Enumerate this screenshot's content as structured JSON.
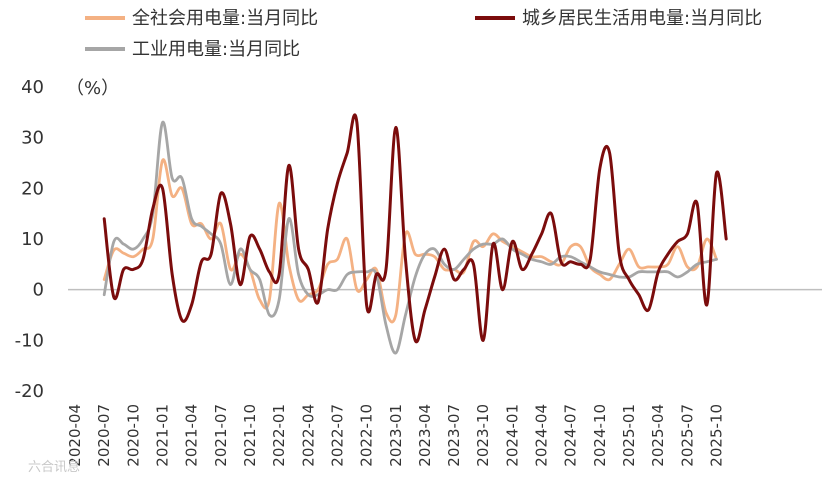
{
  "chart_data": {
    "type": "line",
    "title": "",
    "xlabel": "",
    "ylabel": "",
    "unit_label": "（%）",
    "ylim": [
      -20,
      40
    ],
    "yticks": [
      40,
      30,
      20,
      10,
      0,
      -10,
      -20
    ],
    "x_tick_labels": [
      "2020-04",
      "2020-07",
      "2020-10",
      "2021-01",
      "2021-04",
      "2021-07",
      "2021-10",
      "2022-01",
      "2022-04",
      "2022-07",
      "2022-10",
      "2023-01",
      "2023-04",
      "2023-07",
      "2023-10",
      "2024-01",
      "2024-04",
      "2024-07",
      "2024-10",
      "2025-01",
      "2025-04",
      "2025-07",
      "2025-10"
    ],
    "x_start": "2020-04",
    "x_end": "2025-10",
    "legend_position": "top",
    "series": [
      {
        "name": "全社会用电量:当月同比",
        "color": "#f4b183",
        "points": [
          [
            3,
            2
          ],
          [
            4,
            7.8
          ],
          [
            5,
            7.2
          ],
          [
            6,
            6.5
          ],
          [
            7,
            8
          ],
          [
            8,
            10
          ],
          [
            9,
            25.5
          ],
          [
            10,
            18.5
          ],
          [
            11,
            20
          ],
          [
            12,
            13
          ],
          [
            13,
            13
          ],
          [
            14,
            10
          ],
          [
            15,
            13
          ],
          [
            16,
            4
          ],
          [
            17,
            7
          ],
          [
            18,
            4
          ],
          [
            19,
            -2
          ],
          [
            20,
            -2
          ],
          [
            21,
            17
          ],
          [
            22,
            5
          ],
          [
            23,
            -2
          ],
          [
            24,
            -1
          ],
          [
            25,
            0
          ],
          [
            26,
            5
          ],
          [
            27,
            6
          ],
          [
            28,
            10
          ],
          [
            29,
            0
          ],
          [
            30,
            2
          ],
          [
            31,
            4
          ],
          [
            32,
            -4.5
          ],
          [
            33,
            -5
          ],
          [
            34,
            11
          ],
          [
            35,
            7
          ],
          [
            36,
            7
          ],
          [
            37,
            6.5
          ],
          [
            38,
            4
          ],
          [
            39,
            4
          ],
          [
            40,
            3.5
          ],
          [
            41,
            9.5
          ],
          [
            42,
            8.5
          ],
          [
            43,
            11
          ],
          [
            44,
            9.5
          ],
          [
            45,
            8.5
          ],
          [
            46,
            7.5
          ],
          [
            47,
            6.5
          ],
          [
            48,
            6.5
          ],
          [
            49,
            5.5
          ],
          [
            50,
            5
          ],
          [
            51,
            8.5
          ],
          [
            52,
            8.5
          ],
          [
            53,
            4.5
          ],
          [
            54,
            3
          ],
          [
            55,
            2
          ],
          [
            56,
            5
          ],
          [
            57,
            8
          ],
          [
            58,
            4.5
          ],
          [
            59,
            4.5
          ],
          [
            60,
            4.5
          ],
          [
            61,
            5
          ],
          [
            62,
            8.5
          ],
          [
            63,
            4.5
          ],
          [
            64,
            4.5
          ],
          [
            65,
            10
          ],
          [
            66,
            6
          ]
        ]
      },
      {
        "name": "城乡居民生活用电量:当月同比",
        "color": "#7b0c0c",
        "points": [
          [
            3,
            14
          ],
          [
            4,
            -1.5
          ],
          [
            5,
            4
          ],
          [
            6,
            4
          ],
          [
            7,
            6
          ],
          [
            8,
            16
          ],
          [
            9,
            20
          ],
          [
            10,
            3
          ],
          [
            11,
            -6
          ],
          [
            12,
            -3
          ],
          [
            13,
            5.5
          ],
          [
            14,
            7
          ],
          [
            15,
            19
          ],
          [
            16,
            13
          ],
          [
            17,
            1
          ],
          [
            18,
            10.5
          ],
          [
            19,
            8
          ],
          [
            20,
            3.5
          ],
          [
            21,
            3
          ],
          [
            22,
            24.5
          ],
          [
            23,
            8
          ],
          [
            24,
            4
          ],
          [
            25,
            -2.5
          ],
          [
            26,
            12
          ],
          [
            27,
            21
          ],
          [
            28,
            27
          ],
          [
            29,
            33
          ],
          [
            30,
            -3
          ],
          [
            31,
            3
          ],
          [
            32,
            4
          ],
          [
            33,
            32
          ],
          [
            34,
            6
          ],
          [
            35,
            -10
          ],
          [
            36,
            -4
          ],
          [
            37,
            2.5
          ],
          [
            38,
            8
          ],
          [
            39,
            2
          ],
          [
            40,
            4
          ],
          [
            41,
            5
          ],
          [
            42,
            -10
          ],
          [
            43,
            9
          ],
          [
            44,
            0
          ],
          [
            45,
            9.5
          ],
          [
            46,
            4
          ],
          [
            47,
            7
          ],
          [
            48,
            11
          ],
          [
            49,
            15
          ],
          [
            50,
            5.5
          ],
          [
            51,
            5.5
          ],
          [
            52,
            5
          ],
          [
            53,
            6
          ],
          [
            54,
            24
          ],
          [
            55,
            27
          ],
          [
            56,
            7
          ],
          [
            57,
            2
          ],
          [
            58,
            -1
          ],
          [
            59,
            -4
          ],
          [
            60,
            3.5
          ],
          [
            61,
            7
          ],
          [
            62,
            9.5
          ],
          [
            63,
            11
          ],
          [
            64,
            17
          ],
          [
            65,
            -3
          ],
          [
            66,
            23
          ],
          [
            67,
            10
          ]
        ]
      },
      {
        "name": "工业用电量:当月同比",
        "color": "#a6a6a6",
        "points": [
          [
            3,
            -1
          ],
          [
            4,
            9.5
          ],
          [
            5,
            9
          ],
          [
            6,
            8
          ],
          [
            7,
            10
          ],
          [
            8,
            15
          ],
          [
            9,
            33
          ],
          [
            10,
            22
          ],
          [
            11,
            22
          ],
          [
            12,
            14
          ],
          [
            13,
            12.5
          ],
          [
            14,
            11
          ],
          [
            15,
            9
          ],
          [
            16,
            1
          ],
          [
            17,
            8
          ],
          [
            18,
            4
          ],
          [
            19,
            2
          ],
          [
            20,
            -5
          ],
          [
            21,
            -2
          ],
          [
            22,
            14
          ],
          [
            23,
            3
          ],
          [
            24,
            -1
          ],
          [
            25,
            -1
          ],
          [
            26,
            0
          ],
          [
            27,
            0
          ],
          [
            28,
            3
          ],
          [
            29,
            3.5
          ],
          [
            30,
            3.5
          ],
          [
            31,
            3
          ],
          [
            32,
            -7
          ],
          [
            33,
            -12.5
          ],
          [
            34,
            -5
          ],
          [
            35,
            2.5
          ],
          [
            36,
            7
          ],
          [
            37,
            8
          ],
          [
            38,
            5
          ],
          [
            39,
            4
          ],
          [
            40,
            6
          ],
          [
            41,
            8
          ],
          [
            42,
            9
          ],
          [
            43,
            9
          ],
          [
            44,
            10
          ],
          [
            45,
            8
          ],
          [
            46,
            7
          ],
          [
            47,
            6
          ],
          [
            48,
            5.5
          ],
          [
            49,
            5
          ],
          [
            50,
            6.5
          ],
          [
            51,
            6.5
          ],
          [
            52,
            5.5
          ],
          [
            53,
            4.5
          ],
          [
            54,
            3.5
          ],
          [
            55,
            3
          ],
          [
            56,
            2.5
          ],
          [
            57,
            2.5
          ],
          [
            58,
            3.5
          ],
          [
            59,
            3.5
          ],
          [
            60,
            3.5
          ],
          [
            61,
            3.5
          ],
          [
            62,
            2.5
          ],
          [
            63,
            3.5
          ],
          [
            64,
            5
          ],
          [
            65,
            5.5
          ],
          [
            66,
            6
          ]
        ]
      }
    ]
  },
  "watermark": "六合讯息"
}
